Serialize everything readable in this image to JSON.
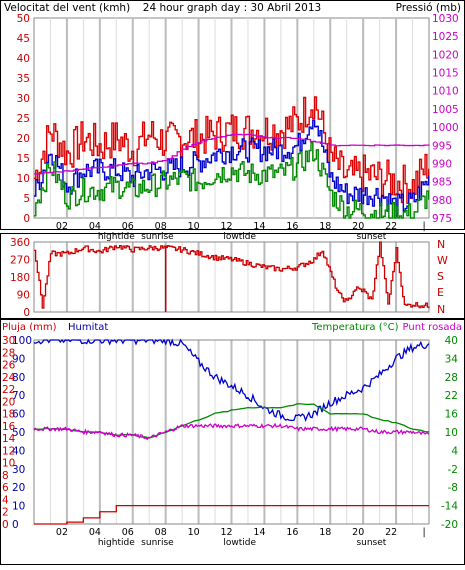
{
  "header": {
    "title": "24 hour graph day : 30 Abril 2013",
    "wind_label": "Velocitat del vent (kmh)",
    "pressure_label": "Pressió (mb)"
  },
  "middle": {
    "direction_labels": [
      "N",
      "W",
      "S",
      "E",
      "N"
    ]
  },
  "bottom": {
    "rain_label": "Pluja (mm)",
    "humidity_label": "Humitat",
    "temp_label": "Temperatura (°C)",
    "dew_label": "Punt rosada"
  },
  "x_ticks": [
    "02",
    "04",
    "06",
    "08",
    "10",
    "12",
    "14",
    "16",
    "18",
    "20",
    "22",
    "|"
  ],
  "x_markers": [
    "hightide",
    "sunrise",
    "lowtide",
    "sunset"
  ],
  "colors": {
    "wind_gust": "#dd0000",
    "wind_avg": "#0000cc",
    "wind_low": "#008800",
    "pressure": "#cc00cc",
    "direction": "#cc0000",
    "rain": "#cc0000",
    "humidity": "#0000cc",
    "temperature": "#008800",
    "dew_point": "#cc00cc",
    "axis_left": "#cc0000",
    "axis_humidity": "#0000aa",
    "axis_temp": "#008800",
    "grid": "#cccccc"
  },
  "chart_data": [
    {
      "type": "line",
      "title": "24 hour graph day : 30 Abril 2013",
      "ylabel": "Velocitat del vent (kmh)",
      "y2label": "Pressió (mb)",
      "ylim": [
        0,
        50
      ],
      "y_ticks": [
        0,
        5,
        10,
        15,
        20,
        25,
        30,
        35,
        40,
        45,
        50
      ],
      "y2lim": [
        975,
        1030
      ],
      "y2_ticks": [
        975,
        980,
        985,
        990,
        995,
        1000,
        1005,
        1010,
        1015,
        1020,
        1025,
        1030
      ],
      "x_hours": [
        0,
        1,
        2,
        3,
        4,
        5,
        6,
        7,
        8,
        9,
        10,
        11,
        12,
        13,
        14,
        15,
        16,
        17,
        18,
        19,
        20,
        21,
        22,
        23,
        24
      ],
      "series": [
        {
          "values": [
            10,
            22,
            16,
            20,
            18,
            20,
            17,
            21,
            19,
            20,
            20,
            21,
            22,
            22,
            22,
            22,
            24,
            30,
            15,
            10,
            11,
            10,
            9,
            8,
            14
          ]
        },
        {
          "values": [
            6,
            17,
            8,
            12,
            12,
            12,
            10,
            12,
            12,
            13,
            14,
            16,
            17,
            17,
            17,
            17,
            18,
            26,
            10,
            6,
            6,
            6,
            3,
            4,
            10
          ]
        },
        {
          "values": [
            3,
            13,
            5,
            7,
            7,
            8,
            7,
            8,
            9,
            10,
            9,
            11,
            12,
            11,
            11,
            11,
            13,
            17,
            6,
            2,
            2,
            1,
            1,
            1,
            6
          ]
        },
        {
          "values": [
            987,
            987.5,
            988,
            988.5,
            989,
            989.5,
            990,
            990,
            991,
            994,
            996,
            997,
            998,
            998,
            997,
            997,
            997,
            996,
            995,
            995,
            995,
            995,
            995,
            995,
            995
          ]
        }
      ]
    },
    {
      "type": "line",
      "ylim": [
        0,
        360
      ],
      "y_ticks": [
        0,
        90,
        180,
        270,
        360
      ],
      "x_hours": [
        0,
        0.5,
        1,
        2,
        3,
        4,
        5,
        6,
        7,
        8,
        9,
        10,
        11,
        12,
        13,
        14,
        15,
        16,
        17,
        17.5,
        18,
        18.5,
        19,
        19.5,
        20,
        20.5,
        21,
        21.5,
        22,
        22.5,
        23,
        24
      ],
      "series": [
        {
          "values": [
            330,
            30,
            300,
            300,
            330,
            310,
            340,
            320,
            330,
            330,
            320,
            300,
            280,
            270,
            250,
            230,
            220,
            230,
            270,
            320,
            200,
            90,
            50,
            120,
            110,
            60,
            350,
            40,
            320,
            30,
            40,
            30
          ]
        }
      ]
    },
    {
      "type": "line",
      "y_humidity_lim": [
        0,
        100
      ],
      "y_humidity_ticks": [
        0,
        10,
        20,
        30,
        40,
        50,
        60,
        70,
        80,
        90,
        100
      ],
      "y_rain_lim": [
        0,
        30
      ],
      "y_rain_ticks": [
        0,
        2,
        4,
        6,
        8,
        10,
        12,
        14,
        16,
        18,
        20,
        22,
        24,
        26,
        28,
        30
      ],
      "y_temp_lim": [
        -20,
        40
      ],
      "y_temp_ticks": [
        -20,
        -14,
        -8,
        -2,
        4,
        10,
        16,
        22,
        28,
        34,
        40
      ],
      "x_hours": [
        0,
        1,
        2,
        3,
        4,
        5,
        6,
        7,
        8,
        9,
        10,
        11,
        12,
        13,
        14,
        15,
        16,
        17,
        18,
        19,
        20,
        21,
        22,
        23,
        24
      ],
      "series": [
        {
          "values": [
            0,
            0,
            0.3,
            1,
            2,
            3,
            3,
            3,
            3,
            3,
            3,
            3,
            3,
            3,
            3,
            3,
            3,
            3,
            3,
            3,
            3,
            3,
            3,
            3,
            3
          ]
        },
        {
          "values": [
            100,
            100,
            100,
            100,
            100,
            100,
            100,
            100,
            100,
            98,
            88,
            80,
            75,
            70,
            63,
            59,
            57,
            60,
            66,
            70,
            74,
            81,
            90,
            96,
            98
          ]
        },
        {
          "values": [
            11,
            11,
            11,
            10,
            10,
            9,
            9,
            8,
            10,
            12,
            14,
            16,
            17,
            18,
            18,
            18,
            19,
            19,
            16,
            16,
            16,
            14,
            13,
            11,
            10
          ]
        },
        {
          "values": [
            11,
            11,
            11,
            10,
            10,
            9,
            9,
            8,
            10,
            12,
            12,
            12,
            12,
            12,
            12,
            12,
            11,
            11,
            11,
            11,
            11,
            10,
            10,
            10,
            9
          ]
        }
      ]
    }
  ]
}
